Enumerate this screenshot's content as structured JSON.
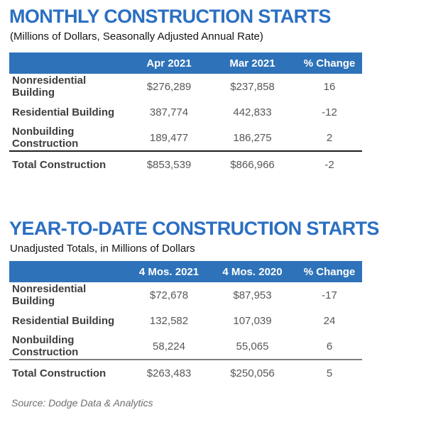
{
  "colors": {
    "title_blue": "#2b6fc2",
    "header_bar_blue": "#2e73b9",
    "row_label_gray": "#3e3e3e",
    "value_gray": "#575757"
  },
  "monthly": {
    "title": "MONTHLY CONSTRUCTION STARTS",
    "subtitle": "(Millions of Dollars, Seasonally Adjusted Annual Rate)",
    "columns": [
      "Apr 2021",
      "Mar 2021",
      "% Change"
    ],
    "rows": [
      {
        "label": "Nonresidential Building",
        "current": "$276,289",
        "prior": "$237,858",
        "change": "16"
      },
      {
        "label": "Residential Building",
        "current": "387,774",
        "prior": "442,833",
        "change": "-12"
      },
      {
        "label": "Nonbuilding Construction",
        "current": "189,477",
        "prior": "186,275",
        "change": "2"
      }
    ],
    "total": {
      "label": "Total Construction",
      "current": "$853,539",
      "prior": "$866,966",
      "change": "-2"
    }
  },
  "ytd": {
    "title": "YEAR-TO-DATE CONSTRUCTION STARTS",
    "subtitle": "Unadjusted Totals, in Millions of Dollars",
    "columns": [
      "4 Mos. 2021",
      "4 Mos. 2020",
      "% Change"
    ],
    "rows": [
      {
        "label": "Nonresidential Building",
        "current": "$72,678",
        "prior": "$87,953",
        "change": "-17"
      },
      {
        "label": "Residential Building",
        "current": "132,582",
        "prior": "107,039",
        "change": "24"
      },
      {
        "label": "Nonbuilding Construction",
        "current": "58,224",
        "prior": "55,065",
        "change": "6"
      }
    ],
    "total": {
      "label": "Total Construction",
      "current": "$263,483",
      "prior": "$250,056",
      "change": "5"
    }
  },
  "footer": {
    "source": "Source: Dodge Data & Analytics"
  }
}
